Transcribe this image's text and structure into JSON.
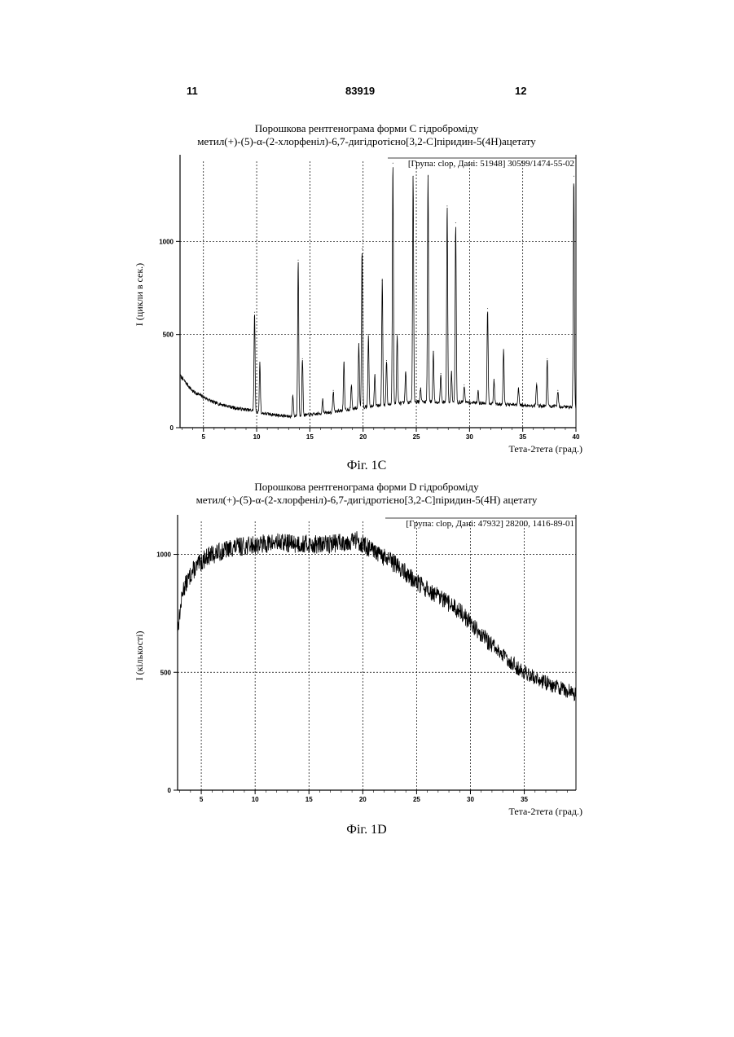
{
  "header": {
    "left": "11",
    "center": "83919",
    "right": "12"
  },
  "chart_data": [
    {
      "type": "line",
      "title_line1": "Порошкова рентгенограма форми С гідроброміду",
      "title_line2": "метил(+)-(5)-α-(2-хлорфеніл)-6,7-дигідротієно[3,2-С]піридин-5(4Н)ацетату",
      "annotation": "[Група: clop, Дані: 51948] 30599/1474-55-02",
      "xlabel": "Тета-2тета (град.)",
      "ylabel": "I (цикли в сек.)",
      "caption": "Фіг. 1С",
      "xlim": [
        2.8,
        40
      ],
      "ylim": [
        0,
        1430
      ],
      "xticks": [
        "5",
        "10",
        "15",
        "20",
        "25",
        "30",
        "35",
        "40"
      ],
      "yticks": [
        "0",
        "500",
        "1000"
      ],
      "grid": true,
      "baseline": [
        [
          2.8,
          280
        ],
        [
          4,
          195
        ],
        [
          6,
          135
        ],
        [
          8,
          105
        ],
        [
          9.8,
          90
        ],
        [
          10.2,
          80
        ],
        [
          13,
          60
        ],
        [
          16,
          75
        ],
        [
          20,
          110
        ],
        [
          25,
          140
        ],
        [
          30,
          135
        ],
        [
          35,
          120
        ],
        [
          40,
          110
        ]
      ],
      "peaks": [
        {
          "x": 9.8,
          "y": 620
        },
        {
          "x": 10.3,
          "y": 350
        },
        {
          "x": 13.4,
          "y": 175
        },
        {
          "x": 13.9,
          "y": 900
        },
        {
          "x": 14.3,
          "y": 370
        },
        {
          "x": 16.2,
          "y": 155
        },
        {
          "x": 17.2,
          "y": 200
        },
        {
          "x": 18.2,
          "y": 350
        },
        {
          "x": 18.9,
          "y": 230
        },
        {
          "x": 19.6,
          "y": 450
        },
        {
          "x": 19.9,
          "y": 960
        },
        {
          "x": 20.5,
          "y": 500
        },
        {
          "x": 21.1,
          "y": 280
        },
        {
          "x": 21.8,
          "y": 790
        },
        {
          "x": 22.2,
          "y": 360
        },
        {
          "x": 22.8,
          "y": 1420
        },
        {
          "x": 23.2,
          "y": 500
        },
        {
          "x": 24.0,
          "y": 300
        },
        {
          "x": 24.7,
          "y": 1350
        },
        {
          "x": 25.4,
          "y": 210
        },
        {
          "x": 26.1,
          "y": 1350
        },
        {
          "x": 26.6,
          "y": 410
        },
        {
          "x": 27.3,
          "y": 290
        },
        {
          "x": 27.9,
          "y": 1190
        },
        {
          "x": 28.3,
          "y": 300
        },
        {
          "x": 28.7,
          "y": 1100
        },
        {
          "x": 29.5,
          "y": 230
        },
        {
          "x": 30.8,
          "y": 200
        },
        {
          "x": 31.7,
          "y": 640
        },
        {
          "x": 32.3,
          "y": 260
        },
        {
          "x": 33.2,
          "y": 420
        },
        {
          "x": 34.6,
          "y": 210
        },
        {
          "x": 36.3,
          "y": 240
        },
        {
          "x": 37.3,
          "y": 370
        },
        {
          "x": 38.3,
          "y": 200
        },
        {
          "x": 39.8,
          "y": 1350
        }
      ]
    },
    {
      "type": "line",
      "title_line1": "Порошкова рентгенограма форми D гідроброміду",
      "title_line2": "метил(+)-(5)-α-(2-хлорфеніл)-6,7-дигідротієно[3,2-С]піридин-5(4Н) ацетату",
      "annotation": "[Група: clop, Дані: 47932] 28200, 1416-89-01",
      "xlabel": "Тета-2тета (град.)",
      "ylabel": "I (кількості)",
      "caption": "Фіг. 1D",
      "xlim": [
        2.8,
        39.8
      ],
      "ylim": [
        0,
        1140
      ],
      "xticks": [
        "5",
        "10",
        "15",
        "20",
        "25",
        "30",
        "35"
      ],
      "yticks": [
        "0",
        "500",
        "1000"
      ],
      "grid": true,
      "baseline": [
        [
          2.8,
          680
        ],
        [
          3.3,
          850
        ],
        [
          4.2,
          930
        ],
        [
          5.5,
          990
        ],
        [
          8,
          1030
        ],
        [
          12,
          1050
        ],
        [
          16,
          1040
        ],
        [
          19.5,
          1060
        ],
        [
          21,
          1010
        ],
        [
          23,
          960
        ],
        [
          25,
          880
        ],
        [
          27,
          820
        ],
        [
          29,
          760
        ],
        [
          31,
          660
        ],
        [
          33,
          570
        ],
        [
          35,
          500
        ],
        [
          37,
          455
        ],
        [
          39.8,
          410
        ]
      ],
      "peaks": []
    }
  ]
}
